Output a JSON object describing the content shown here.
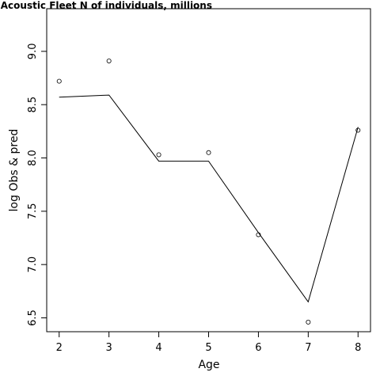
{
  "chart_data": {
    "type": "line",
    "title": "Acoustic Fleet   N of individuals, millions",
    "xlabel": "Age",
    "ylabel": "log Obs & pred",
    "xlim": [
      1.75,
      8.25
    ],
    "ylim": [
      6.37,
      9.4
    ],
    "xticks": [
      2,
      3,
      4,
      5,
      6,
      7,
      8
    ],
    "yticks": [
      6.5,
      7.0,
      7.5,
      8.0,
      8.5,
      9.0
    ],
    "ytick_labels": [
      "6.5",
      "7.0",
      "7.5",
      "8.0",
      "8.5",
      "9.0"
    ],
    "series": [
      {
        "kind": "line",
        "x": [
          2,
          3,
          4,
          5,
          6,
          7,
          8
        ],
        "values": [
          8.57,
          8.59,
          7.97,
          7.97,
          7.3,
          6.65,
          8.29
        ]
      },
      {
        "kind": "points",
        "x": [
          2,
          3,
          4,
          5,
          6,
          7,
          8
        ],
        "values": [
          8.72,
          8.91,
          8.03,
          8.05,
          7.28,
          6.46,
          8.26
        ]
      }
    ]
  }
}
